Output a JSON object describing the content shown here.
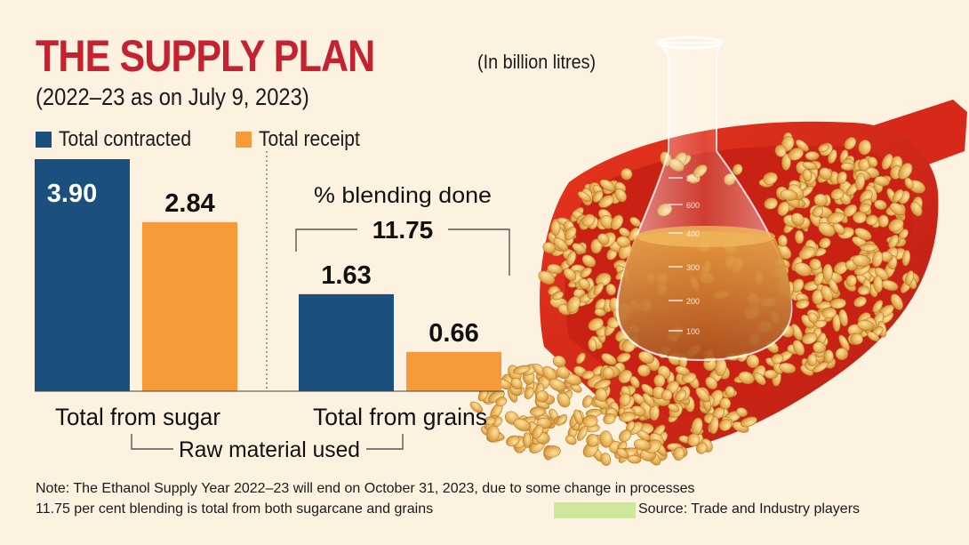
{
  "title": "THE SUPPLY PLAN",
  "subtitle": "(2022–23 as on July 9, 2023)",
  "unit_note": "(In billion litres)",
  "colors": {
    "contracted": "#1b4f7e",
    "receipt": "#f79a3a",
    "title": "#c42231",
    "background": "#fdf2df"
  },
  "chart_data": {
    "type": "bar",
    "title": "THE SUPPLY PLAN",
    "subtitle": "(2022–23 as on July 9, 2023)",
    "ylabel": "In billion litres",
    "categories": [
      "Total from sugar",
      "Total from grains"
    ],
    "series": [
      {
        "name": "Total contracted",
        "values": [
          3.9,
          1.63
        ],
        "labels": [
          "3.90",
          "1.63"
        ]
      },
      {
        "name": "Total receipt",
        "values": [
          2.84,
          0.66
        ],
        "labels": [
          "2.84",
          "0.66"
        ]
      }
    ],
    "ylim": [
      0,
      3.9
    ],
    "xlabel": "Raw material used",
    "annotation": {
      "label": "% blending done",
      "value": "11.75"
    },
    "legend_position": "top-left"
  },
  "notes": {
    "line1": "Note: The Ethanol Supply Year 2022–23 will end on October 31, 2023, due to some change in processes",
    "line2": "11.75 per cent blending is total from both sugarcane and grains",
    "source": "Source: Trade and Industry players"
  },
  "illustration": {
    "flask_marks": [
      "800",
      "600",
      "400",
      "300",
      "200",
      "100"
    ]
  }
}
